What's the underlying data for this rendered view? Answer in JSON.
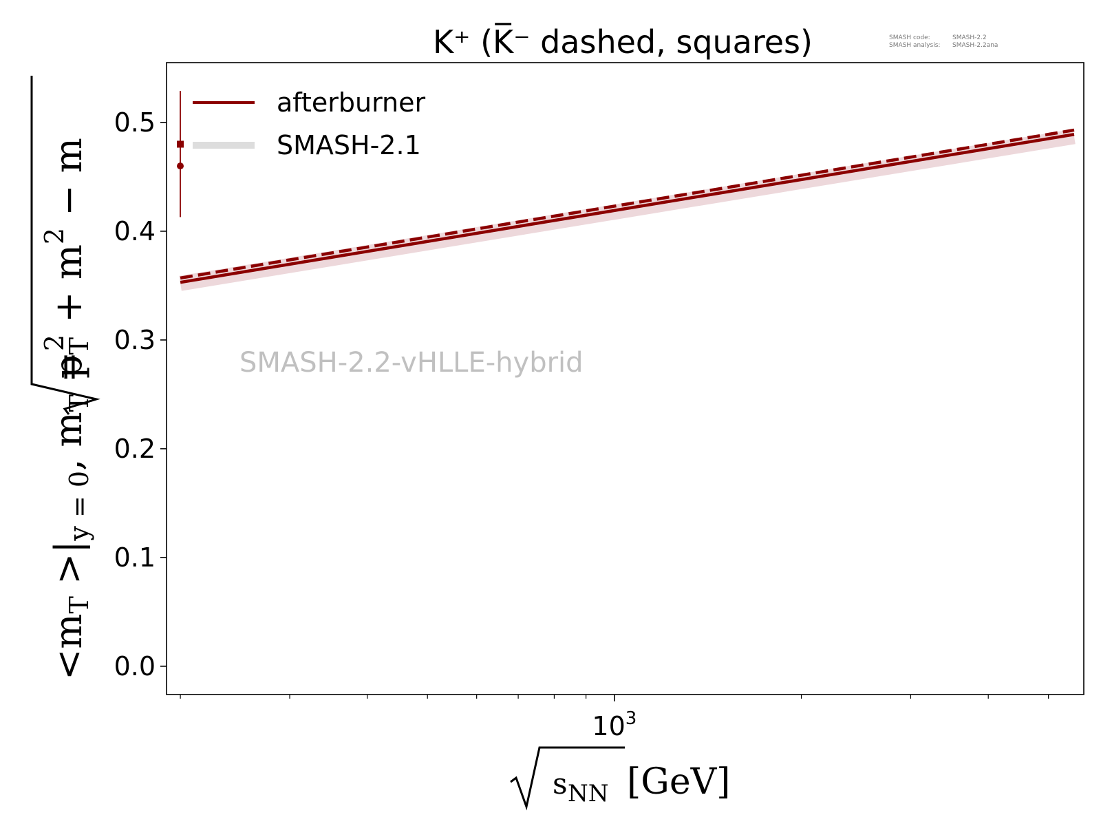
{
  "chart_data": {
    "type": "line",
    "title": "K⁺ (K̅⁻ dashed, squares)",
    "watermark": "SMASH-2.2-vHLLE-hybrid",
    "meta": {
      "code_label": "SMASH code:",
      "code_value": "SMASH-2.2",
      "analysis_label": "SMASH analysis:",
      "analysis_value": "SMASH-2.2ana"
    },
    "xaxis": {
      "scale": "log",
      "range": [
        190,
        5700
      ],
      "major_tick_label_base": "10",
      "major_tick_label_exp": "3",
      "major_tick_value": 1000
    },
    "yaxis": {
      "range": [
        -0.026,
        0.555
      ],
      "ticks": [
        "0.0",
        "0.1",
        "0.2",
        "0.3",
        "0.4",
        "0.5"
      ]
    },
    "series": [
      {
        "name": "afterburner",
        "particle": "K+",
        "style": "solid",
        "color": "#8b0000",
        "x": [
          200,
          5500
        ],
        "y": [
          0.353,
          0.489
        ]
      },
      {
        "particle": "K-",
        "style": "dashed",
        "color": "#8b0000",
        "x": [
          200,
          5500
        ],
        "y": [
          0.357,
          0.493
        ]
      },
      {
        "name": "SMASH-2.1",
        "style": "band",
        "color": "#dddddd",
        "x": [
          200,
          5500
        ],
        "y": [
          0.352,
          0.487
        ]
      }
    ],
    "legend": {
      "placement": "top-left",
      "entries": [
        "afterburner",
        "SMASH-2.1"
      ]
    },
    "legend_markers": {
      "square_y": 0.48,
      "circle_y": 0.46,
      "errorbar": [
        0.413,
        0.529
      ]
    },
    "grid": false
  }
}
